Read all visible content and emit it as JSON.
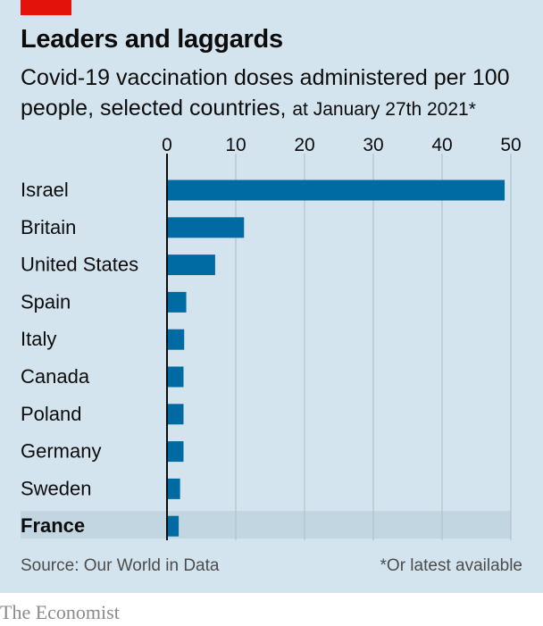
{
  "header": {
    "title": "Leaders and laggards",
    "subtitle": "Covid-19 vaccination doses administered per 100 people, selected countries,",
    "subtitle_note": "at January 27th 2021*"
  },
  "footer": {
    "source": "Source: Our World in Data",
    "footnote": "*Or latest available",
    "brand": "The Economist"
  },
  "colors": {
    "bar": "#006ba2",
    "panel": "#d4e4ee",
    "highlight": "#c2d6e2",
    "accent": "#e3120b"
  },
  "chart_data": {
    "type": "bar",
    "orientation": "horizontal",
    "categories": [
      "Israel",
      "Britain",
      "United States",
      "Spain",
      "Italy",
      "Canada",
      "Poland",
      "Germany",
      "Sweden",
      "France"
    ],
    "values": [
      49.1,
      11.2,
      7.0,
      2.8,
      2.5,
      2.4,
      2.4,
      2.4,
      1.9,
      1.7
    ],
    "highlighted": "France",
    "xlim": [
      0,
      50
    ],
    "xticks": [
      0,
      10,
      20,
      30,
      40,
      50
    ],
    "grid": true,
    "tick_position": "top"
  }
}
